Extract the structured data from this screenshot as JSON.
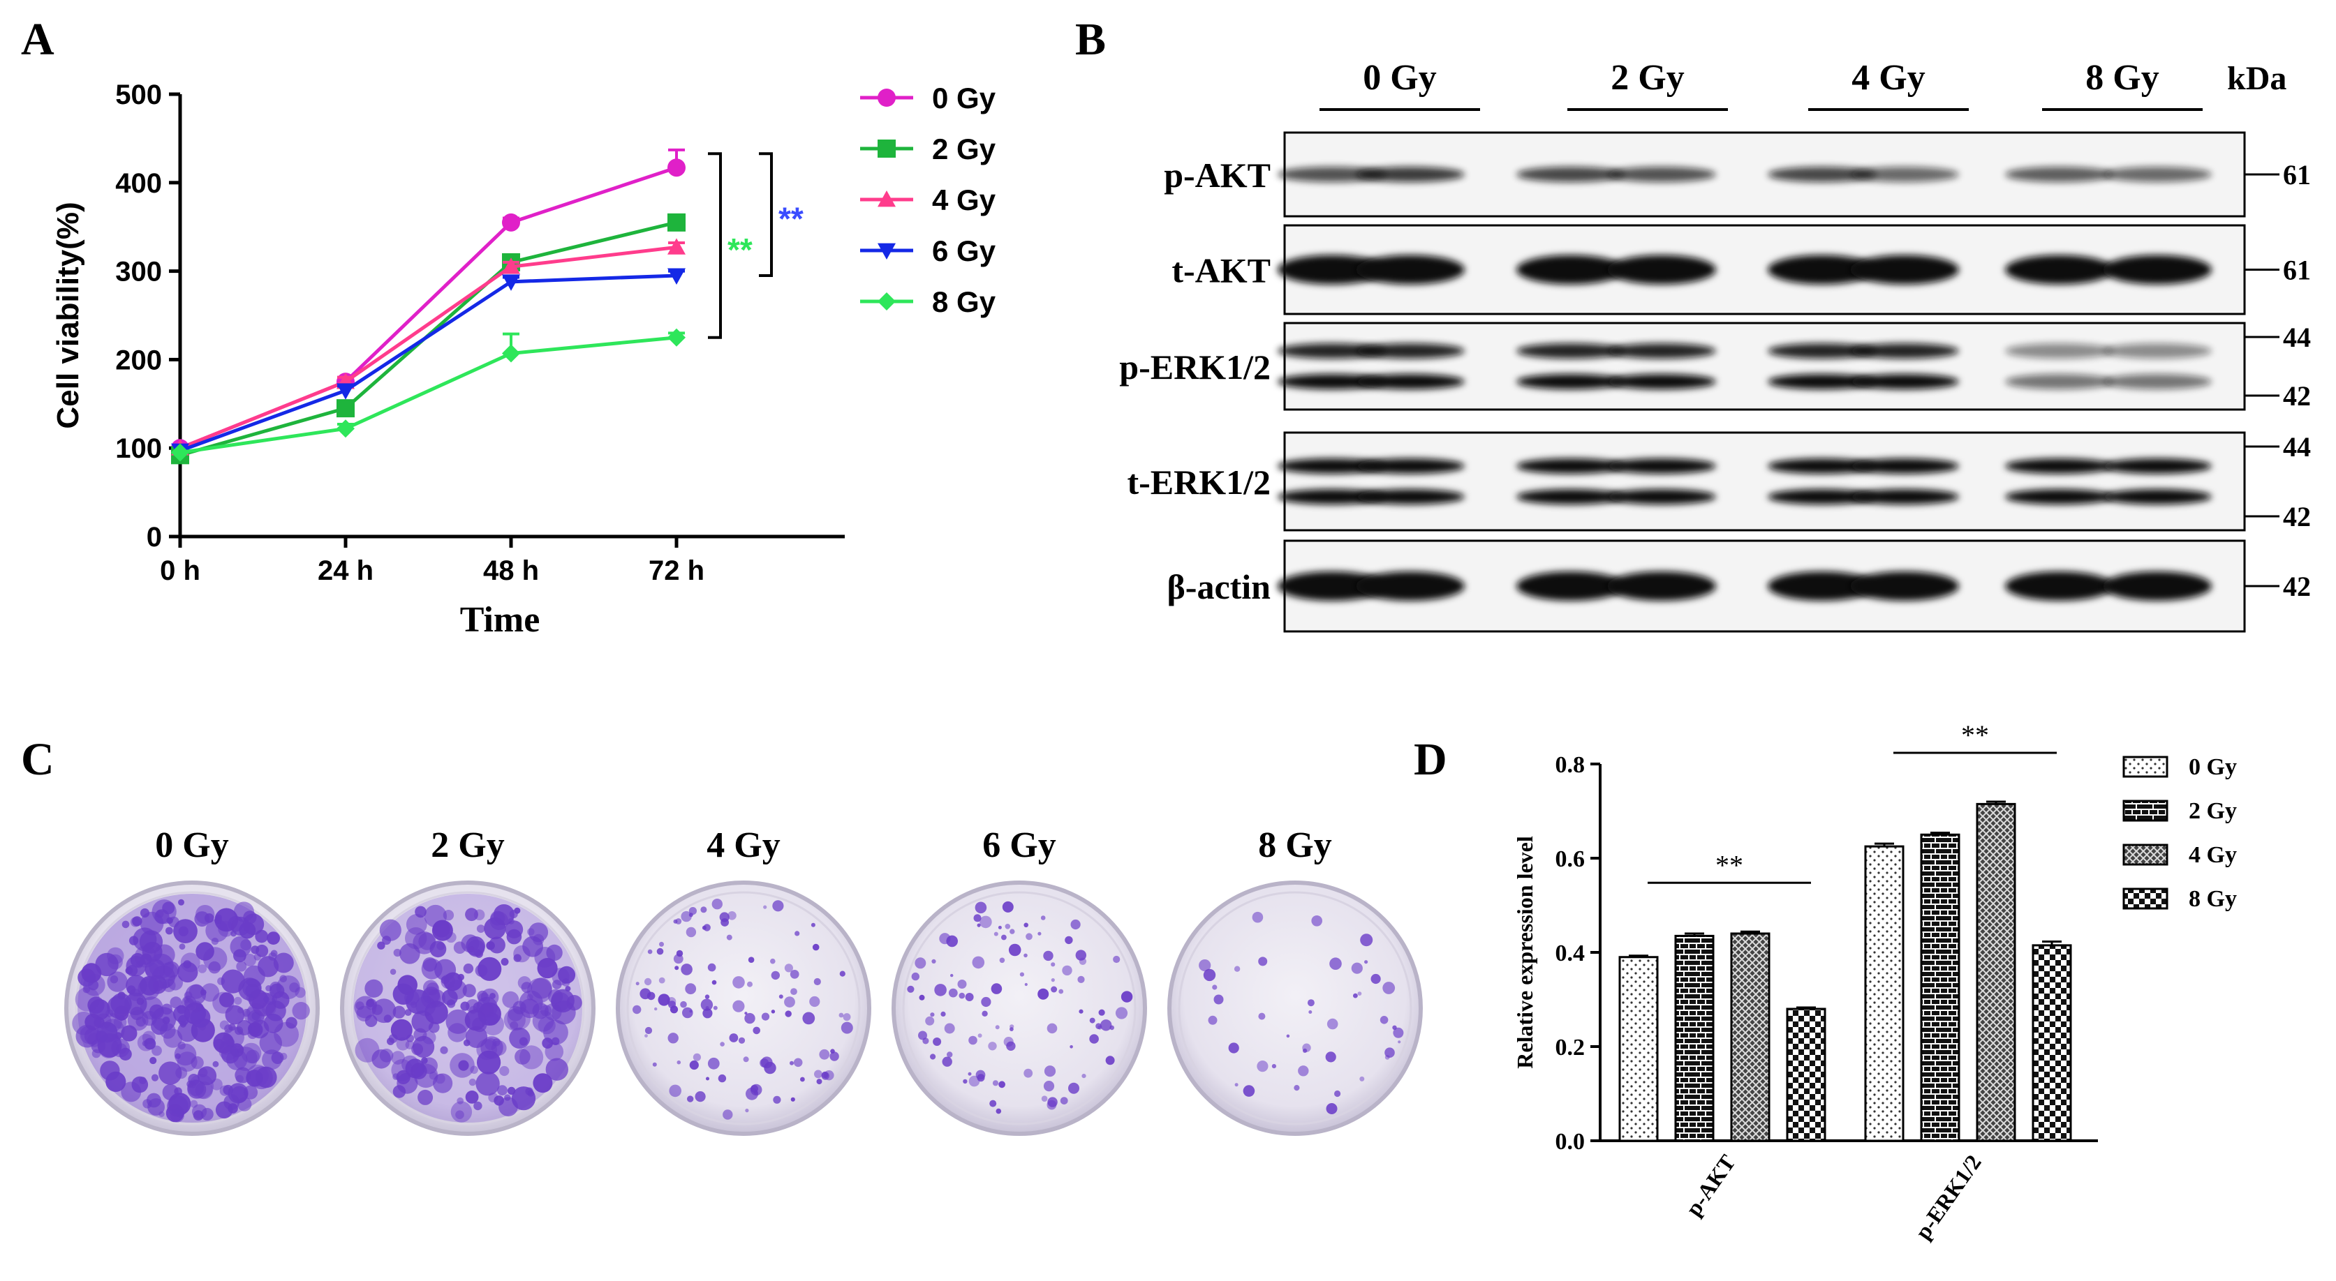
{
  "panels": {
    "a": "A",
    "b": "B",
    "c": "C",
    "d": "D"
  },
  "chart_data": [
    {
      "type": "line",
      "x": [
        "0 h",
        "24 h",
        "48 h",
        "72 h"
      ],
      "xlabel": "Time",
      "ylabel": "Cell viability(%)",
      "ylim": [
        0,
        500
      ],
      "yticks": [
        0,
        100,
        200,
        300,
        400,
        500
      ],
      "legend_position": "right",
      "series": [
        {
          "name": "0 Gy",
          "values": [
            100,
            175,
            355,
            417
          ],
          "error": [
            0,
            5,
            5,
            20
          ],
          "color": "#e020c8",
          "marker": "circle"
        },
        {
          "name": "2 Gy",
          "values": [
            92,
            145,
            310,
            355
          ],
          "error": [
            0,
            5,
            5,
            5
          ],
          "color": "#1eb43c",
          "marker": "square"
        },
        {
          "name": "4 Gy",
          "values": [
            100,
            175,
            305,
            327
          ],
          "error": [
            0,
            5,
            5,
            5
          ],
          "color": "#ff3c8c",
          "marker": "triangle-up"
        },
        {
          "name": "6 Gy",
          "values": [
            97,
            165,
            288,
            295
          ],
          "error": [
            0,
            5,
            5,
            5
          ],
          "color": "#1428e6",
          "marker": "triangle-down"
        },
        {
          "name": "8 Gy",
          "values": [
            95,
            122,
            207,
            225
          ],
          "error": [
            0,
            5,
            22,
            5
          ],
          "color": "#2ee65a",
          "marker": "diamond"
        }
      ],
      "annotations": [
        {
          "text": "**",
          "color": "#2ee65a",
          "range": [
            225,
            417
          ]
        },
        {
          "text": "**",
          "color": "#3a4cff",
          "range": [
            295,
            417
          ]
        }
      ]
    },
    {
      "type": "bar",
      "categories": [
        "p-AKT",
        "p-ERK1/2"
      ],
      "ylabel": "Relative expression level",
      "ylim": [
        0,
        0.8
      ],
      "yticks": [
        "0.0",
        "0.2",
        "0.4",
        "0.6",
        "0.8"
      ],
      "legend_position": "top-right",
      "series": [
        {
          "name": "0 Gy",
          "values": [
            0.39,
            0.625
          ],
          "error": [
            0.003,
            0.006
          ],
          "pattern": "dots"
        },
        {
          "name": "2 Gy",
          "values": [
            0.435,
            0.65
          ],
          "error": [
            0.005,
            0.004
          ],
          "pattern": "bricks"
        },
        {
          "name": "4 Gy",
          "values": [
            0.44,
            0.715
          ],
          "error": [
            0.004,
            0.005
          ],
          "pattern": "crosshatch"
        },
        {
          "name": "8 Gy",
          "values": [
            0.28,
            0.415
          ],
          "error": [
            0.003,
            0.008
          ],
          "pattern": "checker"
        }
      ],
      "annotations": [
        {
          "text": "**",
          "category": "p-AKT"
        },
        {
          "text": "**",
          "category": "p-ERK1/2"
        }
      ]
    }
  ],
  "blot": {
    "groups": [
      "0 Gy",
      "2 Gy",
      "4 Gy",
      "8 Gy"
    ],
    "unit": "kDa",
    "rows": [
      {
        "label": "p-AKT",
        "markers": [
          "61"
        ],
        "intensity": [
          0.7,
          0.8,
          0.75,
          0.7,
          0.75,
          0.6,
          0.65,
          0.6
        ]
      },
      {
        "label": "t-AKT",
        "markers": [
          "61"
        ],
        "intensity": [
          1,
          1,
          1,
          1,
          1,
          1,
          1,
          1
        ]
      },
      {
        "label": "p-ERK1/2",
        "markers": [
          "44",
          "42"
        ],
        "intensity": [
          0.9,
          0.9,
          0.9,
          0.9,
          0.9,
          0.9,
          0.45,
          0.45
        ]
      },
      {
        "label": "t-ERK1/2",
        "markers": [
          "44",
          "42"
        ],
        "intensity": [
          1,
          1,
          1,
          1,
          1,
          1,
          1,
          1
        ]
      },
      {
        "label": "β-actin",
        "markers": [
          "42"
        ],
        "intensity": [
          1,
          1,
          1,
          1,
          1,
          1,
          1,
          1
        ]
      }
    ]
  },
  "colony": {
    "doses": [
      "0 Gy",
      "2 Gy",
      "4 Gy",
      "6 Gy",
      "8 Gy"
    ],
    "colony_density": [
      1.0,
      0.7,
      0.35,
      0.3,
      0.08
    ],
    "stain_color": "#6a3cc8"
  }
}
